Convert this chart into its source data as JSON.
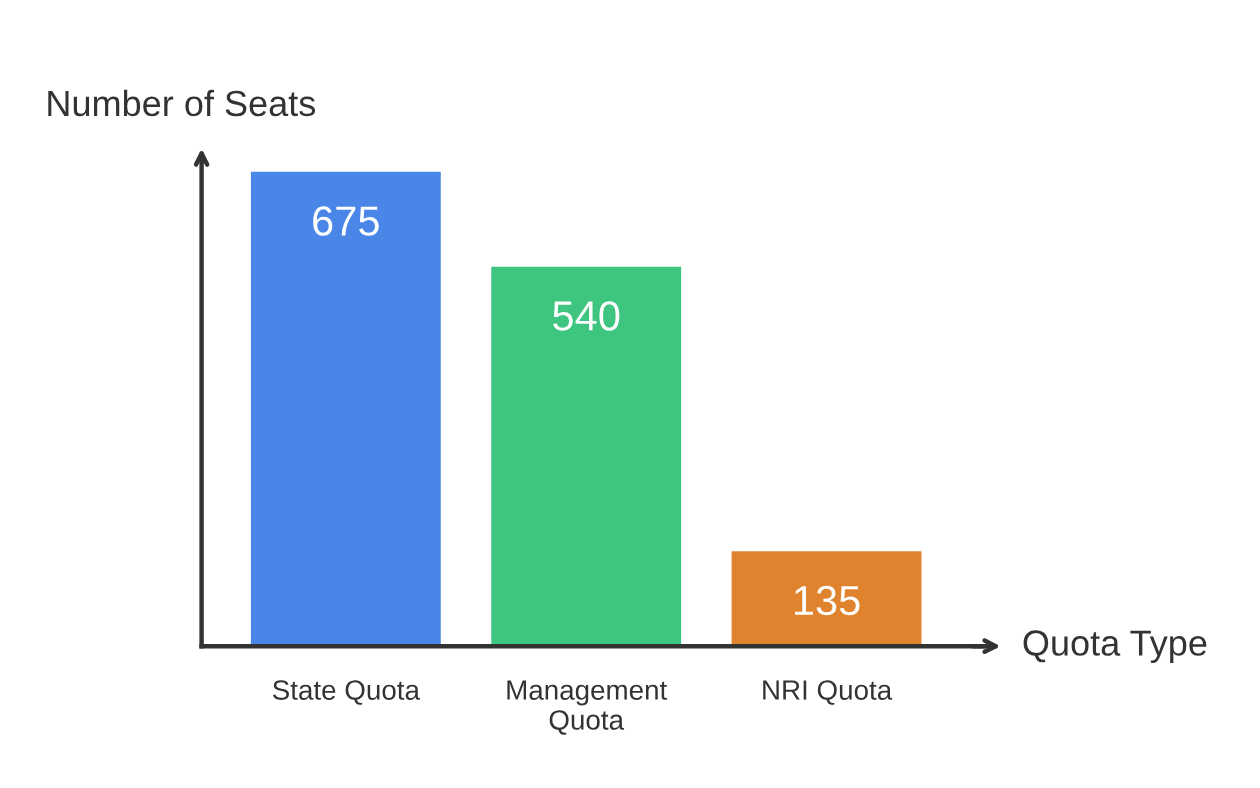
{
  "chart_data": {
    "type": "bar",
    "xlabel": "Quota Type",
    "ylabel": "Number of Seats",
    "categories": [
      "State Quota",
      "Management Quota",
      "NRI Quota"
    ],
    "values": [
      675,
      540,
      135
    ],
    "colors": [
      "#4a86e8",
      "#3ec57f",
      "#e0832e"
    ],
    "data_labels": true,
    "grid": false,
    "legend": false
  }
}
